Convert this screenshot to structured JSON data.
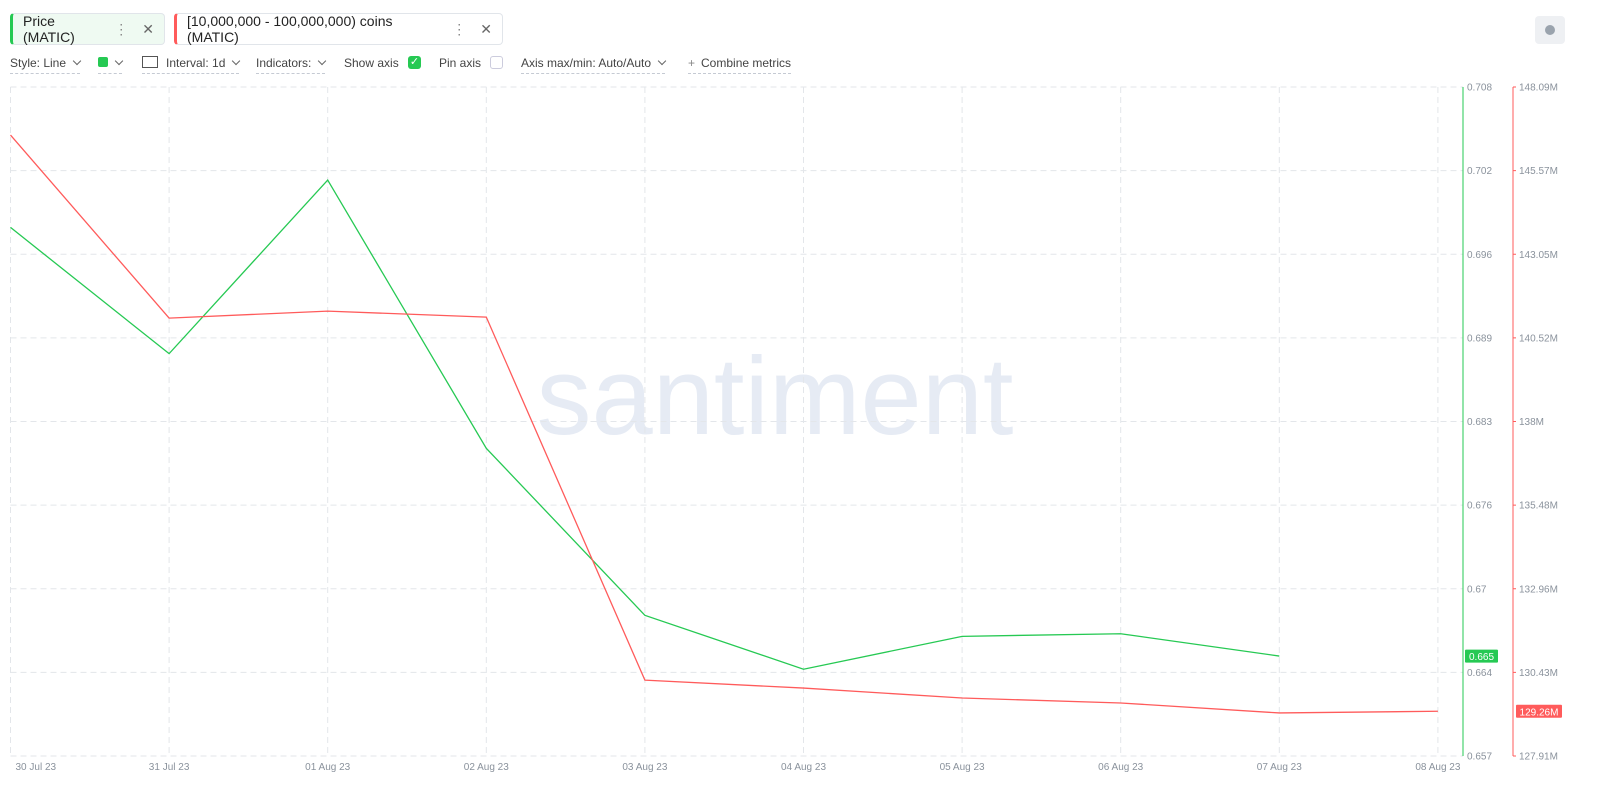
{
  "toolbar": {
    "style": "Style: Line",
    "interval": "Interval: 1d",
    "indicators": "Indicators:",
    "show_axis": "Show axis",
    "pin_axis": "Pin axis",
    "axis_minmax": "Axis max/min: Auto/Auto",
    "combine": "Combine metrics"
  },
  "chart_data": {
    "type": "line",
    "watermark": "santiment",
    "categories": [
      "30 Jul 23",
      "31 Jul 23",
      "01 Aug 23",
      "02 Aug 23",
      "03 Aug 23",
      "04 Aug 23",
      "05 Aug 23",
      "06 Aug 23",
      "07 Aug 23",
      "08 Aug 23"
    ],
    "series": [
      {
        "name": "Price (MATIC)",
        "color": "#26c953",
        "values": [
          0.6976,
          0.688,
          0.7012,
          0.6808,
          0.6681,
          0.664,
          0.6665,
          0.6667,
          0.665,
          null
        ]
      },
      {
        "name": "[10,000,000 - 100,000,000) coins (MATIC)",
        "color": "#ff5b5b",
        "axis": "y2",
        "values": [
          146640000,
          141120000,
          141330000,
          141150000,
          130200000,
          129960000,
          129660000,
          129510000,
          129210000,
          129260000
        ],
        "value_labels": [
          null,
          null,
          null,
          null,
          null,
          null,
          null,
          null,
          null,
          "129.26M"
        ]
      }
    ],
    "ylim": [
      0.6574,
      0.70828
    ],
    "yticks": [
      {
        "value": 0.6574,
        "label": "0.657"
      },
      {
        "value": 0.66376,
        "label": "0.664"
      },
      {
        "value": 0.67012,
        "label": "0.67"
      },
      {
        "value": 0.67648,
        "label": "0.676"
      },
      {
        "value": 0.68284,
        "label": "0.683"
      },
      {
        "value": 0.6892,
        "label": "0.689"
      },
      {
        "value": 0.69556,
        "label": "0.696"
      },
      {
        "value": 0.70192,
        "label": "0.702"
      },
      {
        "value": 0.70828,
        "label": "0.708"
      }
    ],
    "y2lim": [
      127911000,
      148091000
    ],
    "y2ticks": [
      {
        "value": 127911000,
        "label": "127.91M"
      },
      {
        "value": 130433500,
        "label": "130.43M"
      },
      {
        "value": 132956000,
        "label": "132.96M"
      },
      {
        "value": 135478500,
        "label": "135.48M"
      },
      {
        "value": 138001000,
        "label": "138M"
      },
      {
        "value": 140523500,
        "label": "140.52M"
      },
      {
        "value": 143046000,
        "label": "143.05M"
      },
      {
        "value": 145568500,
        "label": "145.57M"
      },
      {
        "value": 148091000,
        "label": "148.09M"
      }
    ],
    "grid": true
  }
}
